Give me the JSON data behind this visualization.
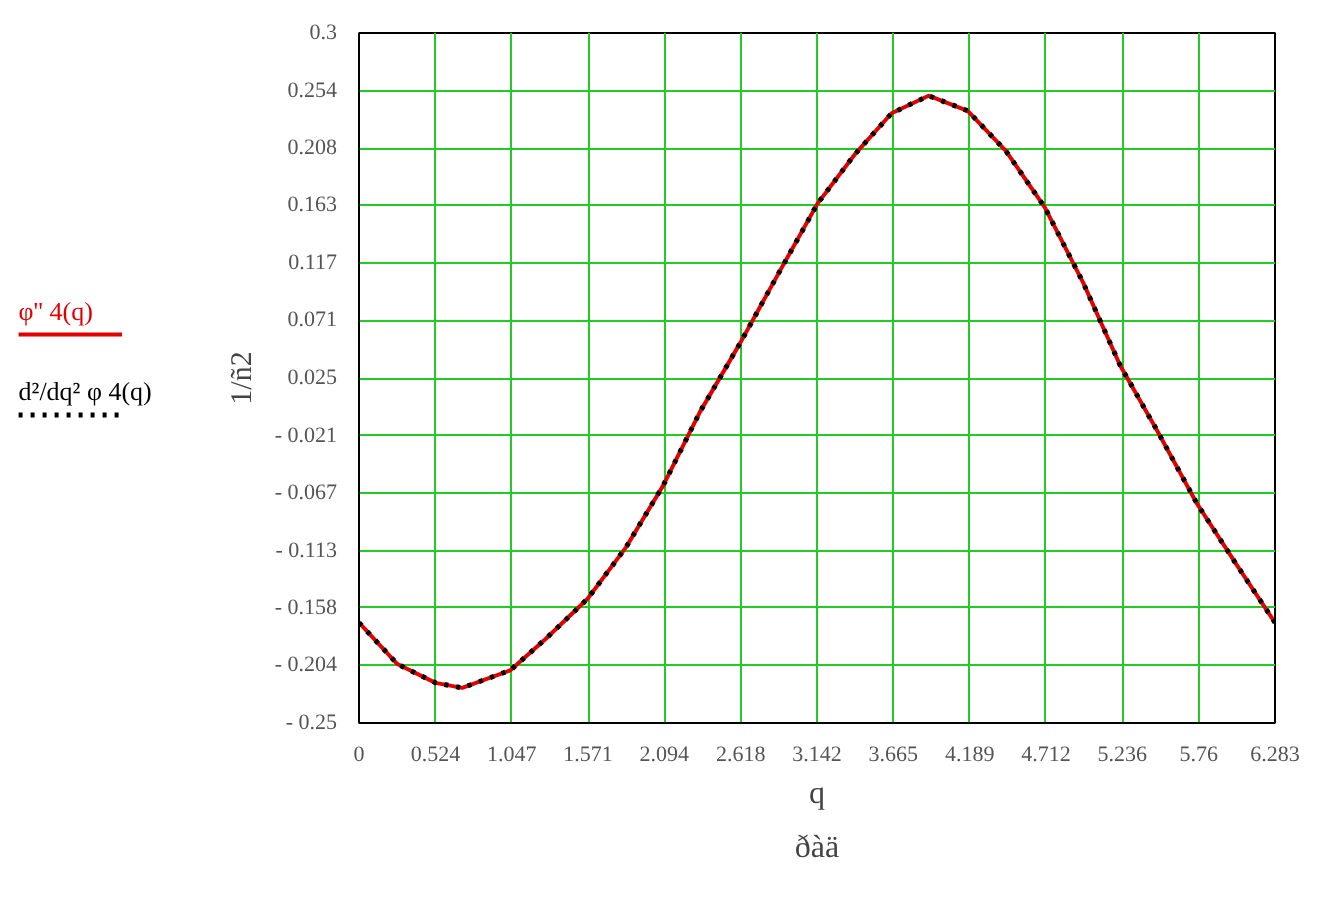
{
  "chart_data": {
    "type": "line",
    "xlabel": "q",
    "ylabel": "1/ñ2",
    "annotations": [
      "ðàä"
    ],
    "x": [
      0,
      0.263,
      0.525,
      0.708,
      1.038,
      1.28,
      1.568,
      1.831,
      2.085,
      2.339,
      2.615,
      2.89,
      3.145,
      3.399,
      3.653,
      3.907,
      4.175,
      4.437,
      4.704,
      4.967,
      5.221,
      5.475,
      5.747,
      6.026,
      6.283
    ],
    "series": [
      {
        "name": "φ'' 4(q)",
        "color": "#e00000",
        "line_style": "solid",
        "values": [
          -0.17,
          -0.203,
          -0.218,
          -0.222,
          -0.208,
          -0.183,
          -0.151,
          -0.11,
          -0.061,
          -0.002,
          0.053,
          0.111,
          0.164,
          0.203,
          0.236,
          0.25,
          0.238,
          0.206,
          0.161,
          0.101,
          0.035,
          -0.017,
          -0.075,
          -0.125,
          -0.17
        ]
      },
      {
        "name": "d²/dq² φ 4(q)",
        "color": "#000000",
        "line_style": "dotted",
        "values": [
          -0.17,
          -0.203,
          -0.218,
          -0.222,
          -0.208,
          -0.183,
          -0.151,
          -0.11,
          -0.061,
          -0.002,
          0.053,
          0.111,
          0.164,
          0.203,
          0.236,
          0.25,
          0.238,
          0.206,
          0.161,
          0.101,
          0.035,
          -0.017,
          -0.075,
          -0.125,
          -0.17
        ]
      }
    ],
    "xlim": [
      0,
      6.283
    ],
    "xticks": [
      0,
      0.524,
      1.047,
      1.571,
      2.094,
      2.618,
      3.142,
      3.665,
      4.189,
      4.712,
      5.236,
      5.76,
      6.283
    ],
    "ylim": [
      -0.25,
      0.3
    ],
    "yticks": [
      0.3,
      0.254,
      0.208,
      0.163,
      0.117,
      0.071,
      0.025,
      {
        "value": -0.021,
        "label": "- 0.021"
      },
      {
        "value": -0.067,
        "label": "- 0.067"
      },
      {
        "value": -0.113,
        "label": "- 0.113"
      },
      {
        "value": -0.158,
        "label": "- 0.158"
      },
      {
        "value": -0.204,
        "label": "- 0.204"
      },
      {
        "value": -0.25,
        "label": "- 0.25"
      }
    ],
    "grid": true,
    "legend": "left",
    "marker": "none"
  }
}
